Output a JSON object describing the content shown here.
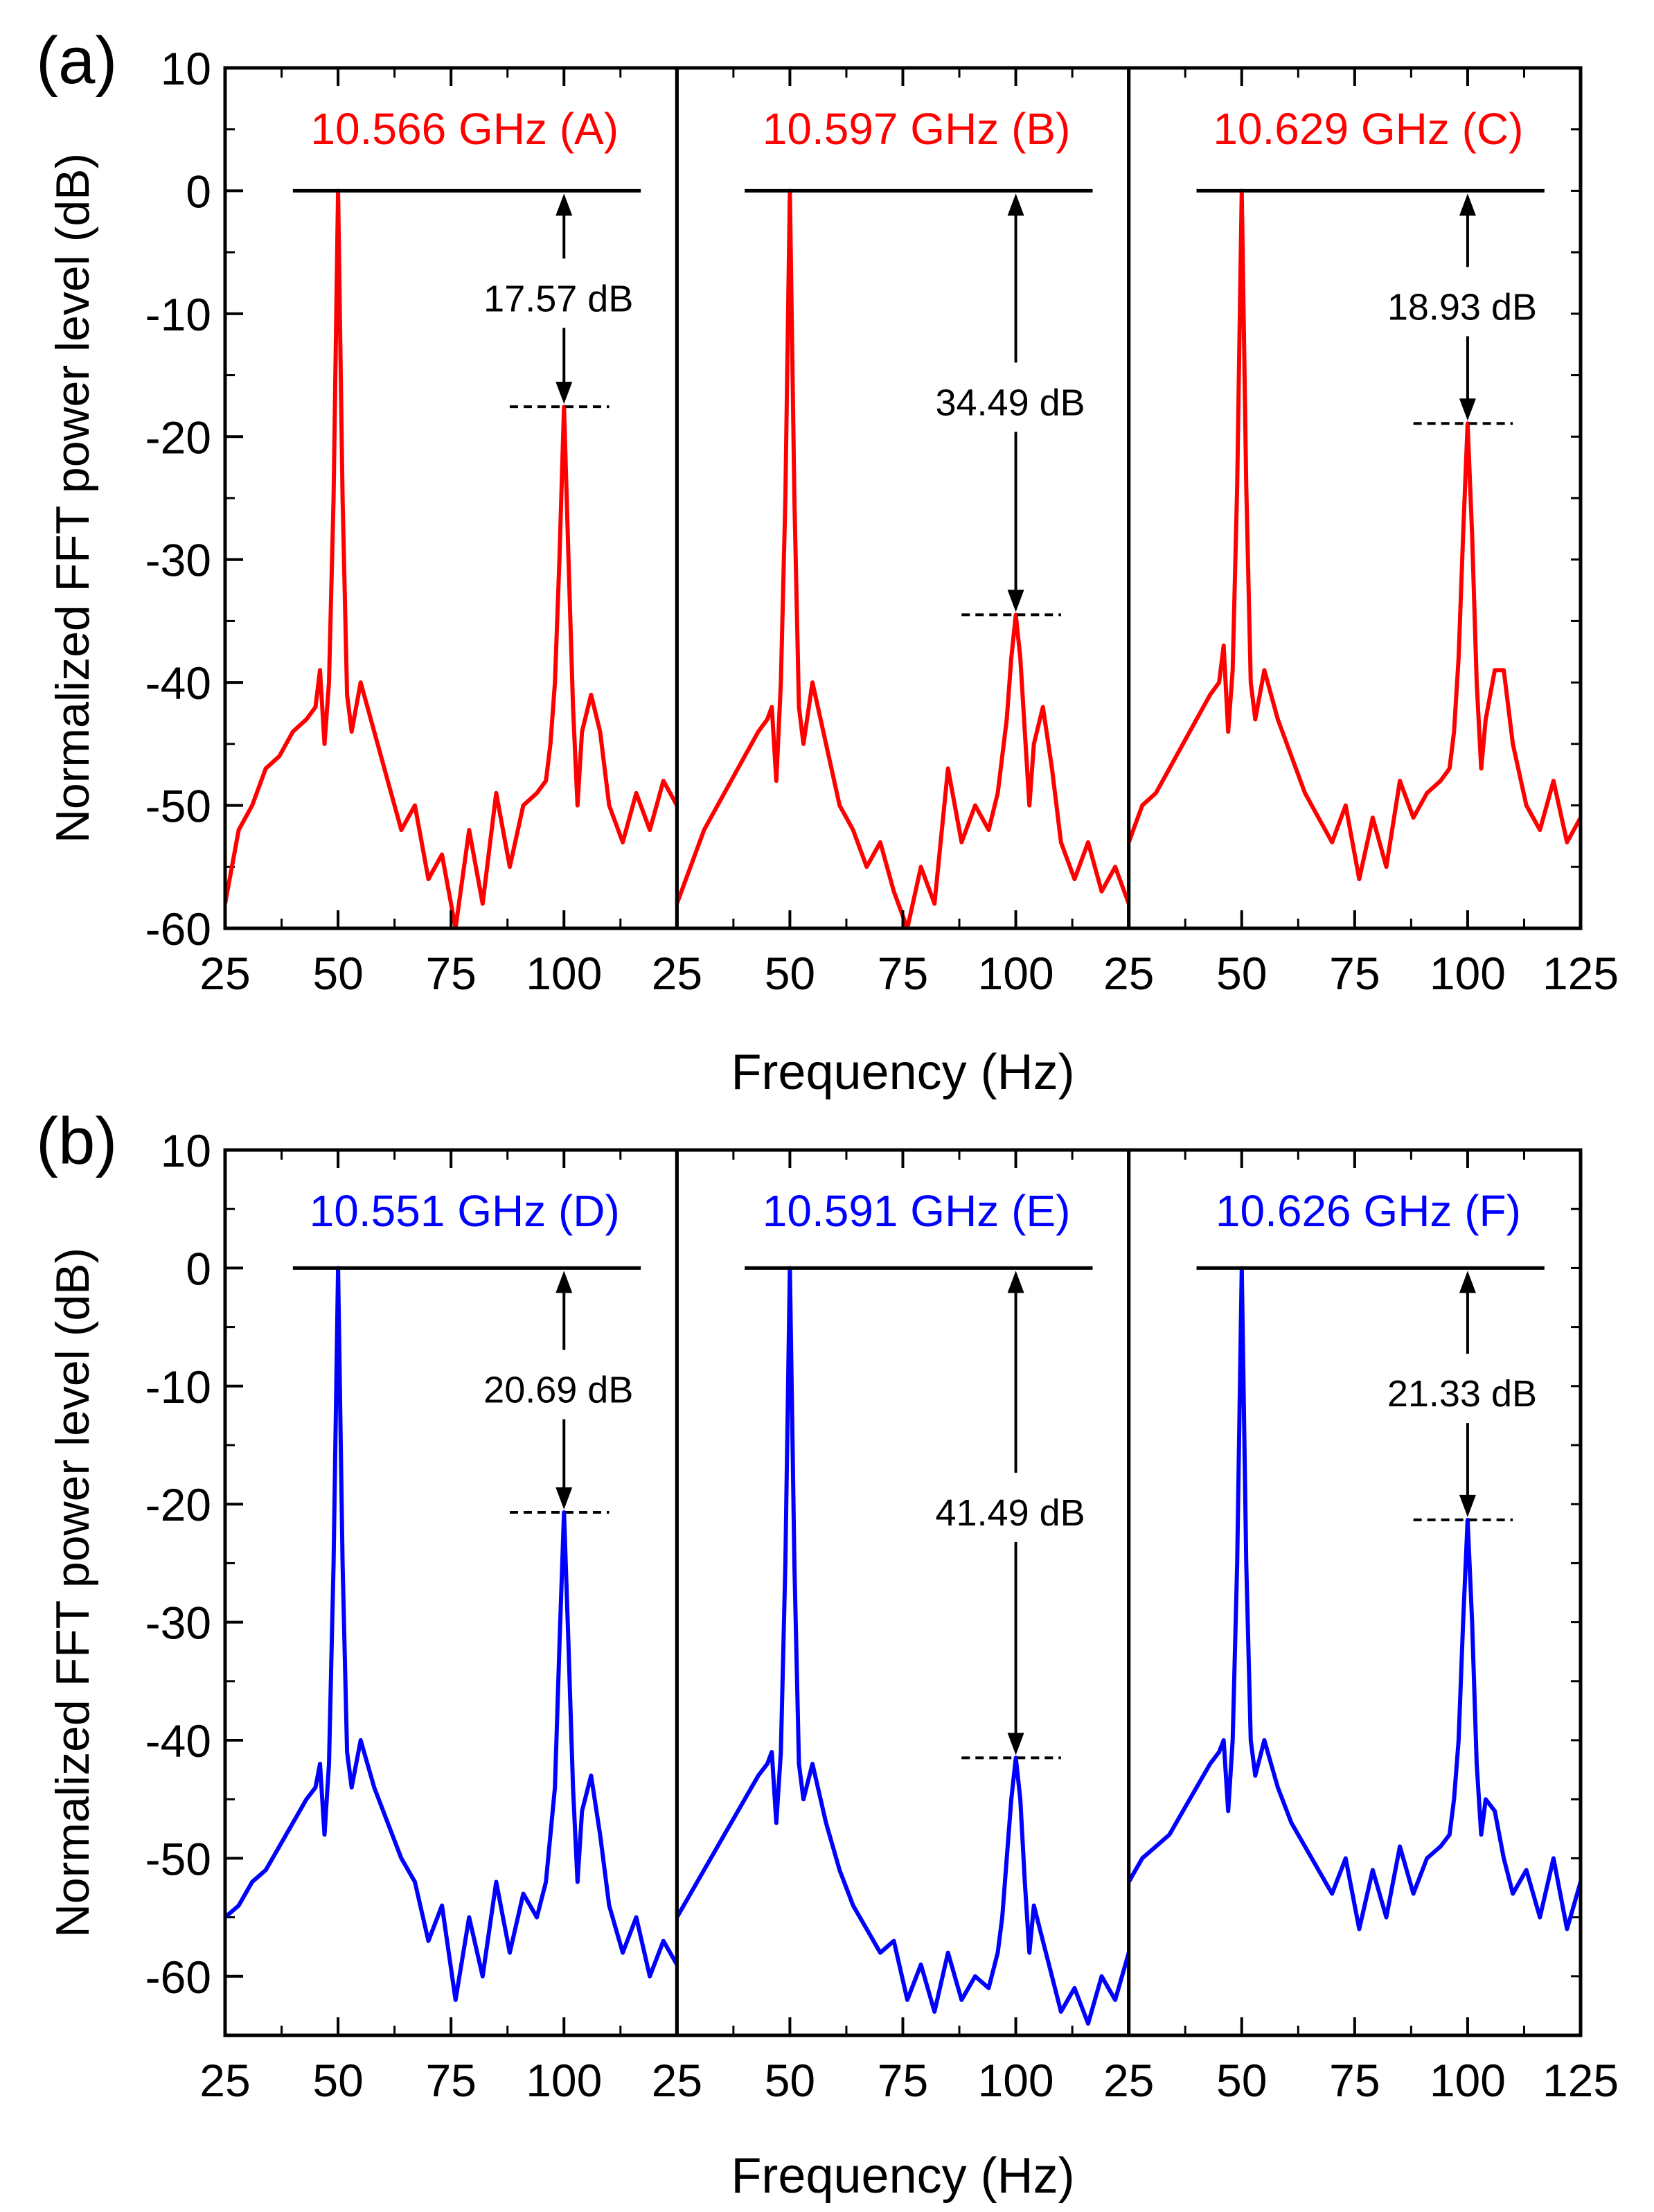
{
  "figure": {
    "panels": [
      {
        "id": "a",
        "label": "(a)",
        "color": "#ff0000",
        "ylabel": "Normalized FFT power level (dB)",
        "xlabel": "Frequency (Hz)",
        "ylim": [
          -60,
          10
        ],
        "yticks": [
          10,
          0,
          -10,
          -20,
          -30,
          -40,
          -50,
          -60
        ],
        "subplots": [
          {
            "title": "10.566 GHz (A)",
            "annotation": "17.57 dB",
            "second_peak": -17.57,
            "xlim": [
              25,
              125
            ],
            "xticks": [
              25,
              50,
              75,
              100
            ]
          },
          {
            "title": "10.597 GHz (B)",
            "annotation": "34.49 dB",
            "second_peak": -34.49,
            "xlim": [
              25,
              125
            ],
            "xticks": [
              25,
              50,
              75,
              100
            ]
          },
          {
            "title": "10.629 GHz (C)",
            "annotation": "18.93 dB",
            "second_peak": -18.93,
            "xlim": [
              25,
              125
            ],
            "xticks": [
              25,
              50,
              75,
              100,
              125
            ]
          }
        ]
      },
      {
        "id": "b",
        "label": "(b)",
        "color": "#0000ff",
        "ylabel": "Normalized FFT power level (dB)",
        "xlabel": "Frequency (Hz)",
        "ylim": [
          -65,
          10
        ],
        "yticks": [
          10,
          0,
          -10,
          -20,
          -30,
          -40,
          -50,
          -60
        ],
        "subplots": [
          {
            "title": "10.551 GHz (D)",
            "annotation": "20.69 dB",
            "second_peak": -20.69,
            "xlim": [
              25,
              125
            ],
            "xticks": [
              25,
              50,
              75,
              100
            ]
          },
          {
            "title": "10.591 GHz (E)",
            "annotation": "41.49 dB",
            "second_peak": -41.49,
            "xlim": [
              25,
              125
            ],
            "xticks": [
              25,
              50,
              75,
              100
            ]
          },
          {
            "title": "10.626 GHz (F)",
            "annotation": "21.33 dB",
            "second_peak": -21.33,
            "xlim": [
              25,
              125
            ],
            "xticks": [
              25,
              50,
              75,
              100,
              125
            ]
          }
        ]
      }
    ]
  },
  "chart_data": [
    {
      "type": "line",
      "title": "10.566 GHz (A)",
      "xlabel": "Frequency (Hz)",
      "ylabel": "Normalized FFT power level (dB)",
      "xlim": [
        25,
        125
      ],
      "ylim": [
        -60,
        10
      ],
      "color": "#ff0000",
      "series": [
        {
          "name": "10.566 GHz (A)",
          "x": [
            25,
            28,
            31,
            34,
            37,
            40,
            43,
            45,
            46,
            47,
            48,
            49,
            50,
            51,
            52,
            53,
            55,
            58,
            61,
            64,
            67,
            70,
            73,
            76,
            79,
            82,
            85,
            88,
            91,
            94,
            96,
            97,
            98,
            99,
            100,
            101,
            102,
            103,
            104,
            106,
            108,
            110,
            113,
            116,
            119,
            122,
            125
          ],
          "y": [
            -58,
            -52,
            -50,
            -47,
            -46,
            -44,
            -43,
            -42,
            -39,
            -45,
            -40,
            -25,
            0,
            -25,
            -41,
            -44,
            -40,
            -44,
            -48,
            -52,
            -50,
            -56,
            -54,
            -60,
            -52,
            -58,
            -49,
            -55,
            -50,
            -49,
            -48,
            -45,
            -40,
            -30,
            -17.57,
            -30,
            -42,
            -50,
            -44,
            -41,
            -44,
            -50,
            -53,
            -49,
            -52,
            -48,
            -50
          ]
        }
      ]
    },
    {
      "type": "line",
      "title": "10.597 GHz (B)",
      "xlabel": "Frequency (Hz)",
      "ylabel": "Normalized FFT power level (dB)",
      "xlim": [
        25,
        125
      ],
      "ylim": [
        -60,
        10
      ],
      "color": "#ff0000",
      "series": [
        {
          "name": "10.597 GHz (B)",
          "x": [
            25,
            28,
            31,
            34,
            37,
            40,
            43,
            45,
            46,
            47,
            48,
            49,
            50,
            51,
            52,
            53,
            55,
            58,
            61,
            64,
            67,
            70,
            73,
            76,
            79,
            82,
            85,
            88,
            91,
            94,
            96,
            97,
            98,
            99,
            100,
            101,
            102,
            103,
            104,
            106,
            108,
            110,
            113,
            116,
            119,
            122,
            125
          ],
          "y": [
            -58,
            -55,
            -52,
            -50,
            -48,
            -46,
            -44,
            -43,
            -42,
            -48,
            -40,
            -25,
            0,
            -25,
            -42,
            -45,
            -40,
            -45,
            -50,
            -52,
            -55,
            -53,
            -57,
            -60,
            -55,
            -58,
            -47,
            -53,
            -50,
            -52,
            -49,
            -46,
            -43,
            -38,
            -34.49,
            -38,
            -44,
            -50,
            -45,
            -42,
            -47,
            -53,
            -56,
            -53,
            -57,
            -55,
            -58
          ]
        }
      ]
    },
    {
      "type": "line",
      "title": "10.629 GHz (C)",
      "xlabel": "Frequency (Hz)",
      "ylabel": "Normalized FFT power level (dB)",
      "xlim": [
        25,
        125
      ],
      "ylim": [
        -60,
        10
      ],
      "color": "#ff0000",
      "series": [
        {
          "name": "10.629 GHz (C)",
          "x": [
            25,
            28,
            31,
            34,
            37,
            40,
            43,
            45,
            46,
            47,
            48,
            49,
            50,
            51,
            52,
            53,
            55,
            58,
            61,
            64,
            67,
            70,
            73,
            76,
            79,
            82,
            85,
            88,
            91,
            94,
            96,
            97,
            98,
            99,
            100,
            101,
            102,
            103,
            104,
            106,
            108,
            110,
            113,
            116,
            119,
            122,
            125
          ],
          "y": [
            -53,
            -50,
            -49,
            -47,
            -45,
            -43,
            -41,
            -40,
            -37,
            -44,
            -39,
            -24,
            0,
            -24,
            -40,
            -43,
            -39,
            -43,
            -46,
            -49,
            -51,
            -53,
            -50,
            -56,
            -51,
            -55,
            -48,
            -51,
            -49,
            -48,
            -47,
            -44,
            -38,
            -28,
            -18.93,
            -28,
            -40,
            -47,
            -43,
            -39,
            -39,
            -45,
            -50,
            -52,
            -48,
            -53,
            -51
          ]
        }
      ]
    },
    {
      "type": "line",
      "title": "10.551 GHz (D)",
      "xlabel": "Frequency (Hz)",
      "ylabel": "Normalized FFT power level (dB)",
      "xlim": [
        25,
        125
      ],
      "ylim": [
        -65,
        10
      ],
      "color": "#0000ff",
      "series": [
        {
          "name": "10.551 GHz (D)",
          "x": [
            25,
            28,
            31,
            34,
            37,
            40,
            43,
            45,
            46,
            47,
            48,
            49,
            50,
            51,
            52,
            53,
            55,
            58,
            61,
            64,
            67,
            70,
            73,
            76,
            79,
            82,
            85,
            88,
            91,
            94,
            96,
            97,
            98,
            99,
            100,
            101,
            102,
            103,
            104,
            106,
            108,
            110,
            113,
            116,
            119,
            122,
            125
          ],
          "y": [
            -55,
            -54,
            -52,
            -51,
            -49,
            -47,
            -45,
            -44,
            -42,
            -48,
            -42,
            -25,
            0,
            -25,
            -41,
            -44,
            -40,
            -44,
            -47,
            -50,
            -52,
            -57,
            -54,
            -62,
            -55,
            -60,
            -52,
            -58,
            -53,
            -55,
            -52,
            -48,
            -44,
            -32,
            -20.69,
            -32,
            -44,
            -52,
            -46,
            -43,
            -48,
            -54,
            -58,
            -55,
            -60,
            -57,
            -59
          ]
        }
      ]
    },
    {
      "type": "line",
      "title": "10.591 GHz (E)",
      "xlabel": "Frequency (Hz)",
      "ylabel": "Normalized FFT power level (dB)",
      "xlim": [
        25,
        125
      ],
      "ylim": [
        -65,
        10
      ],
      "color": "#0000ff",
      "series": [
        {
          "name": "10.591 GHz (E)",
          "x": [
            25,
            28,
            31,
            34,
            37,
            40,
            43,
            45,
            46,
            47,
            48,
            49,
            50,
            51,
            52,
            53,
            55,
            58,
            61,
            64,
            67,
            70,
            73,
            76,
            79,
            82,
            85,
            88,
            91,
            94,
            96,
            97,
            98,
            99,
            100,
            101,
            102,
            103,
            104,
            106,
            108,
            110,
            113,
            116,
            119,
            122,
            125
          ],
          "y": [
            -55,
            -53,
            -51,
            -49,
            -47,
            -45,
            -43,
            -42,
            -41,
            -47,
            -41,
            -25,
            0,
            -25,
            -42,
            -45,
            -42,
            -47,
            -51,
            -54,
            -56,
            -58,
            -57,
            -62,
            -59,
            -63,
            -58,
            -62,
            -60,
            -61,
            -58,
            -55,
            -50,
            -45,
            -41.49,
            -45,
            -52,
            -58,
            -54,
            -57,
            -60,
            -63,
            -61,
            -64,
            -60,
            -62,
            -58
          ]
        }
      ]
    },
    {
      "type": "line",
      "title": "10.626 GHz (F)",
      "xlabel": "Frequency (Hz)",
      "ylabel": "Normalized FFT power level (dB)",
      "xlim": [
        25,
        125
      ],
      "ylim": [
        -65,
        10
      ],
      "color": "#0000ff",
      "series": [
        {
          "name": "10.626 GHz (F)",
          "x": [
            25,
            28,
            31,
            34,
            37,
            40,
            43,
            45,
            46,
            47,
            48,
            49,
            50,
            51,
            52,
            53,
            55,
            58,
            61,
            64,
            67,
            70,
            73,
            76,
            79,
            82,
            85,
            88,
            91,
            94,
            96,
            97,
            98,
            99,
            100,
            101,
            102,
            103,
            104,
            106,
            108,
            110,
            113,
            116,
            119,
            122,
            125
          ],
          "y": [
            -52,
            -50,
            -49,
            -48,
            -46,
            -44,
            -42,
            -41,
            -40,
            -46,
            -40,
            -25,
            0,
            -25,
            -40,
            -43,
            -40,
            -44,
            -47,
            -49,
            -51,
            -53,
            -50,
            -56,
            -51,
            -55,
            -49,
            -53,
            -50,
            -49,
            -48,
            -45,
            -40,
            -30,
            -21.33,
            -30,
            -42,
            -48,
            -45,
            -46,
            -50,
            -53,
            -51,
            -55,
            -50,
            -56,
            -52
          ]
        }
      ]
    }
  ]
}
